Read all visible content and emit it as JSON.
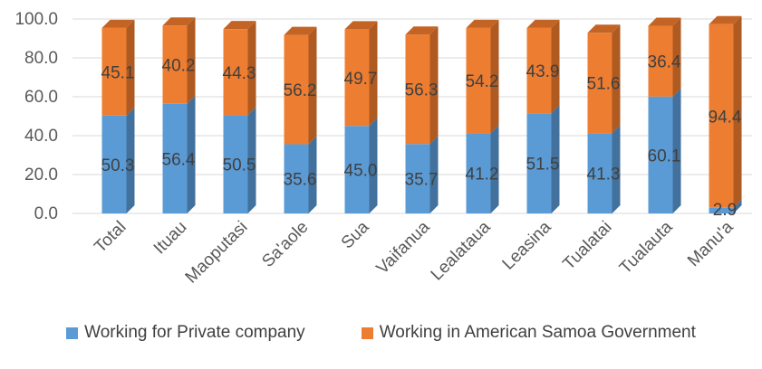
{
  "colors": {
    "private_front": "#5B9BD5",
    "private_side": "#41719C",
    "private_top": "#8DB8E4",
    "gov_front": "#ED7D31",
    "gov_side": "#AE5A21",
    "gov_top": "#C46424",
    "axis_text": "#595959",
    "label_text": "#404040",
    "gridline": "#D9D9D9"
  },
  "chart_data": {
    "type": "bar",
    "stacked": true,
    "style": "3d-column",
    "categories": [
      "Total",
      "Ituau",
      "Maoputasi",
      "Sa'aole",
      "Sua",
      "Vaifanua",
      "Lealataua",
      "Leasina",
      "Tualatai",
      "Tualauta",
      "Manu'a"
    ],
    "series": [
      {
        "name": "Working for Private company",
        "values": [
          50.3,
          56.4,
          50.5,
          35.6,
          45.0,
          35.7,
          41.2,
          51.5,
          41.3,
          60.1,
          2.9
        ],
        "labels": [
          "50.3",
          "56.4",
          "50.5",
          "35.6",
          "45.0",
          "35.7",
          "41.2",
          "51.5",
          "41.3",
          "60.1",
          "2.9"
        ]
      },
      {
        "name": "Working in American Samoa Government",
        "values": [
          45.1,
          40.2,
          44.3,
          56.2,
          49.7,
          56.3,
          54.2,
          43.9,
          51.6,
          36.4,
          94.4
        ],
        "labels": [
          "45.1",
          "40.2",
          "44.3",
          "56.2",
          "49.7",
          "56.3",
          "54.2",
          "43.9",
          "51.6",
          "36.4",
          "94.4"
        ]
      }
    ],
    "ylim": [
      0,
      100
    ],
    "yticks": [
      "0.0",
      "20.0",
      "40.0",
      "60.0",
      "80.0",
      "100.0"
    ],
    "title": "",
    "xlabel": "",
    "ylabel": "",
    "legend_position": "bottom",
    "grid": true
  }
}
